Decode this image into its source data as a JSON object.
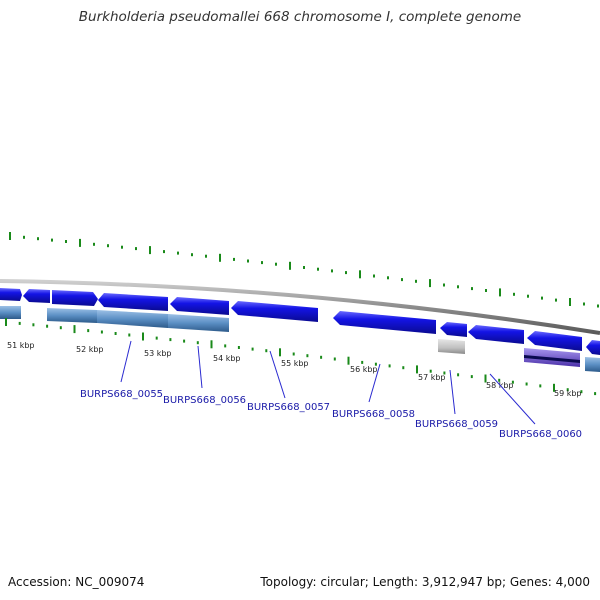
{
  "title": "Burkholderia pseudomallei 668 chromosome I, complete genome",
  "accession_text": "Accession: NC_009074",
  "summary_text": "Topology: circular; Length: 3,912,947 bp; Genes: 4,000",
  "kbp_labels": [
    "51 kbp",
    "52 kbp",
    "53 kbp",
    "54 kbp",
    "55 kbp",
    "56 kbp",
    "57 kbp",
    "58 kbp",
    "59 kbp"
  ],
  "locus_tags": [
    "BURPS668_0055",
    "BURPS668_0056",
    "BURPS668_0057",
    "BURPS668_0058",
    "BURPS668_0059",
    "BURPS668_0060"
  ],
  "colors": {
    "cds_blue": "#1414e6",
    "gene_steel": "#5b8fc4",
    "pseudo_gray": "#c0c0c0",
    "rna_purple": "#6a4fc8",
    "tick_green": "#1a8a1a",
    "backbone_gray": "#8c8c8c",
    "leader_line": "#2a2ad0"
  }
}
